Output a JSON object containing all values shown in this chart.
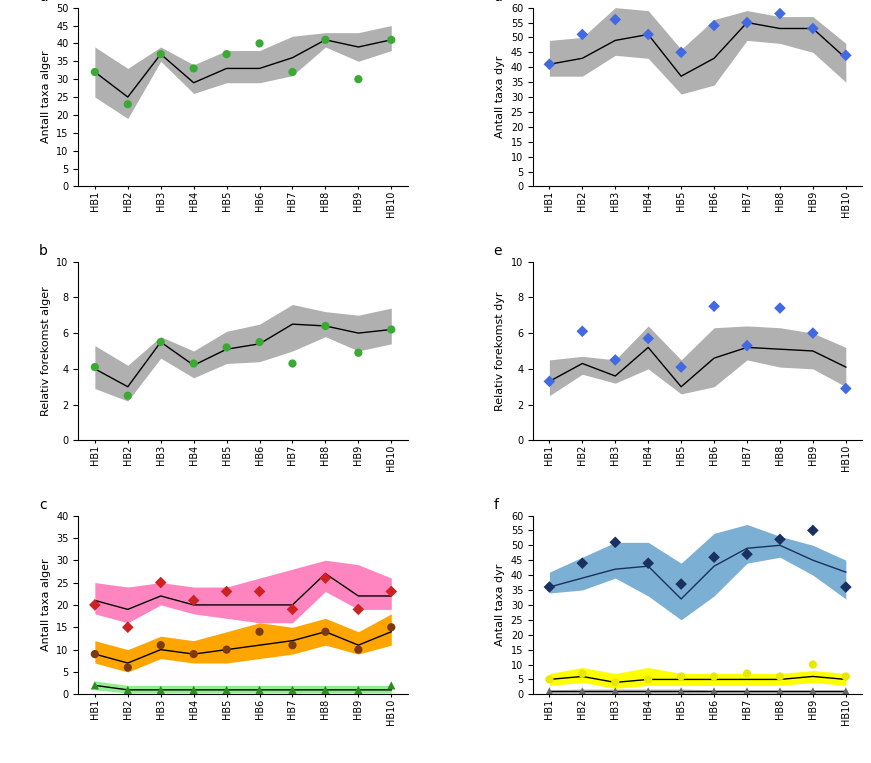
{
  "x_labels": [
    "HB1",
    "HB2",
    "HB3",
    "HB4",
    "HB5",
    "HB6",
    "HB7",
    "HB8",
    "HB9",
    "HB10"
  ],
  "panel_a": {
    "title": "a",
    "ylabel": "Antall taxa alger",
    "ylim": [
      0,
      50
    ],
    "yticks": [
      0,
      5,
      10,
      15,
      20,
      25,
      30,
      35,
      40,
      45,
      50
    ],
    "line": [
      32,
      25,
      37,
      29,
      33,
      33,
      36,
      41,
      39,
      41
    ],
    "band_upper": [
      39,
      33,
      39,
      34,
      38,
      38,
      42,
      43,
      43,
      45
    ],
    "band_lower": [
      25,
      19,
      35,
      26,
      29,
      29,
      31,
      39,
      35,
      38
    ],
    "scatter": [
      32,
      23,
      37,
      33,
      37,
      40,
      32,
      41,
      30,
      41
    ],
    "scatter_color": "#3aaa35",
    "scatter_marker": "o",
    "line_color": "#000000",
    "band_color": "#b0b0b0"
  },
  "panel_b": {
    "title": "b",
    "ylabel": "Relativ forekomst alger",
    "ylim": [
      0,
      10
    ],
    "yticks": [
      0,
      2,
      4,
      6,
      8,
      10
    ],
    "line": [
      4.0,
      3.0,
      5.5,
      4.2,
      5.1,
      5.4,
      6.5,
      6.4,
      6.0,
      6.2
    ],
    "band_upper": [
      5.3,
      4.2,
      5.8,
      5.0,
      6.1,
      6.5,
      7.6,
      7.2,
      7.0,
      7.4
    ],
    "band_lower": [
      2.9,
      2.2,
      4.6,
      3.5,
      4.3,
      4.4,
      5.0,
      5.8,
      5.0,
      5.4
    ],
    "scatter": [
      4.1,
      2.5,
      5.5,
      4.3,
      5.2,
      5.5,
      4.3,
      6.4,
      4.9,
      6.2
    ],
    "scatter_color": "#3aaa35",
    "scatter_marker": "o",
    "line_color": "#000000",
    "band_color": "#b0b0b0"
  },
  "panel_c": {
    "title": "c",
    "ylabel": "Antall taxa alger",
    "ylim": [
      0,
      40
    ],
    "yticks": [
      0,
      5,
      10,
      15,
      20,
      25,
      30,
      35,
      40
    ],
    "series": [
      {
        "line": [
          21,
          19,
          22,
          20,
          20,
          20,
          20,
          27,
          22,
          22
        ],
        "band_upper": [
          25,
          24,
          25,
          24,
          24,
          26,
          28,
          30,
          29,
          26
        ],
        "band_lower": [
          18,
          16,
          20,
          18,
          17,
          16,
          16,
          23,
          19,
          19
        ],
        "scatter": [
          20,
          15,
          25,
          21,
          23,
          23,
          19,
          26,
          19,
          23
        ],
        "scatter_color": "#cc2222",
        "scatter_marker": "D",
        "line_color": "#000000",
        "band_color": "#ff85c0"
      },
      {
        "line": [
          9,
          7,
          10,
          9,
          10,
          11,
          12,
          14,
          11,
          14
        ],
        "band_upper": [
          12,
          10,
          13,
          12,
          14,
          16,
          15,
          17,
          14,
          18
        ],
        "band_lower": [
          7,
          5,
          8,
          7,
          7,
          8,
          9,
          11,
          9,
          11
        ],
        "scatter": [
          9,
          6,
          11,
          9,
          10,
          14,
          11,
          14,
          10,
          15
        ],
        "scatter_color": "#7b3a10",
        "scatter_marker": "o",
        "line_color": "#000000",
        "band_color": "#ffa500"
      },
      {
        "line": [
          2,
          1,
          1,
          1,
          1,
          1,
          1,
          1,
          1,
          1
        ],
        "band_upper": [
          3,
          2,
          2,
          2,
          2,
          2,
          2,
          2,
          2,
          2
        ],
        "band_lower": [
          1,
          0.3,
          0.3,
          0.3,
          0.3,
          0.3,
          0.3,
          0.3,
          0.3,
          0.3
        ],
        "scatter": [
          2,
          1,
          1,
          1,
          1,
          1,
          1,
          1,
          1,
          2
        ],
        "scatter_color": "#2e8b22",
        "scatter_marker": "^",
        "line_color": "#000000",
        "band_color": "#90ee90"
      }
    ]
  },
  "panel_d": {
    "title": "d",
    "ylabel": "Antall taxa dyr",
    "ylim": [
      0,
      60
    ],
    "yticks": [
      0,
      5,
      10,
      15,
      20,
      25,
      30,
      35,
      40,
      45,
      50,
      55,
      60
    ],
    "line": [
      41,
      43,
      49,
      51,
      37,
      43,
      55,
      53,
      53,
      43
    ],
    "band_upper": [
      49,
      50,
      60,
      59,
      46,
      56,
      59,
      57,
      57,
      48
    ],
    "band_lower": [
      37,
      37,
      44,
      43,
      31,
      34,
      49,
      48,
      45,
      35
    ],
    "scatter": [
      41,
      51,
      56,
      51,
      45,
      54,
      55,
      58,
      53,
      44
    ],
    "scatter_color": "#4169e1",
    "scatter_marker": "D",
    "line_color": "#000000",
    "band_color": "#b0b0b0"
  },
  "panel_e": {
    "title": "e",
    "ylabel": "Relativ forekomst dyr",
    "ylim": [
      0,
      10
    ],
    "yticks": [
      0,
      2,
      4,
      6,
      8,
      10
    ],
    "line": [
      3.3,
      4.3,
      3.6,
      5.2,
      3.0,
      4.6,
      5.2,
      5.1,
      5.0,
      4.1
    ],
    "band_upper": [
      4.5,
      4.7,
      4.5,
      6.4,
      4.5,
      6.3,
      6.4,
      6.3,
      6.0,
      5.2
    ],
    "band_lower": [
      2.5,
      3.7,
      3.2,
      4.0,
      2.6,
      3.0,
      4.5,
      4.1,
      4.0,
      3.0
    ],
    "scatter": [
      3.3,
      6.1,
      4.5,
      5.7,
      4.1,
      7.5,
      5.3,
      7.4,
      6.0,
      2.9
    ],
    "scatter_color": "#4169e1",
    "scatter_marker": "D",
    "line_color": "#000000",
    "band_color": "#b0b0b0"
  },
  "panel_f": {
    "title": "f",
    "ylabel": "Antall taxa dyr",
    "ylim": [
      0,
      60
    ],
    "yticks": [
      0,
      5,
      10,
      15,
      20,
      25,
      30,
      35,
      40,
      45,
      50,
      55,
      60
    ],
    "series": [
      {
        "line": [
          36,
          39,
          42,
          43,
          32,
          43,
          49,
          50,
          45,
          41
        ],
        "band_upper": [
          41,
          46,
          51,
          51,
          44,
          54,
          57,
          53,
          50,
          45
        ],
        "band_lower": [
          34,
          35,
          39,
          33,
          25,
          33,
          44,
          46,
          40,
          32
        ],
        "scatter": [
          36,
          44,
          51,
          44,
          37,
          46,
          47,
          52,
          55,
          36
        ],
        "scatter_color": "#1a3060",
        "scatter_marker": "D",
        "line_color": "#1a3060",
        "band_color": "#7bafd4"
      },
      {
        "line": [
          5,
          6,
          4,
          5,
          5,
          5,
          5,
          5,
          6,
          5
        ],
        "band_upper": [
          7,
          9,
          7,
          9,
          7,
          7,
          7,
          7,
          8,
          7
        ],
        "band_lower": [
          3,
          4,
          2,
          3,
          3,
          3,
          3,
          3,
          4,
          3
        ],
        "scatter": [
          5,
          7,
          4,
          5,
          6,
          6,
          7,
          6,
          10,
          6
        ],
        "scatter_color": "#e8e800",
        "scatter_marker": "o",
        "line_color": "#000000",
        "band_color": "#ffff00"
      },
      {
        "line": [
          1,
          1,
          1,
          1,
          1,
          1,
          1,
          1,
          1,
          1
        ],
        "band_upper": [
          1.5,
          1.8,
          1.8,
          1.8,
          1.8,
          1.5,
          1.5,
          1.5,
          1.5,
          1.5
        ],
        "band_lower": [
          0.3,
          0.3,
          0.3,
          0.3,
          0.3,
          0.3,
          0.3,
          0.3,
          0.3,
          0.3
        ],
        "scatter": [
          1,
          1,
          1,
          1,
          1,
          1,
          1,
          1,
          1,
          1
        ],
        "scatter_color": "#666666",
        "scatter_marker": "^",
        "line_color": "#000000",
        "band_color": "#c0c0c0"
      }
    ]
  }
}
